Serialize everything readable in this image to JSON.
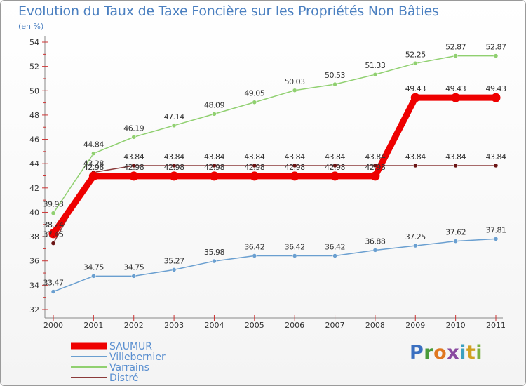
{
  "header": {
    "title": "Evolution du Taux de Taxe Foncière sur les Propriétés Non Bâties",
    "unit": "(en %)"
  },
  "logo": {
    "letters": [
      {
        "ch": "P",
        "color": "#3a6fc0"
      },
      {
        "ch": "r",
        "color": "#4a9a3a"
      },
      {
        "ch": "o",
        "color": "#e07820"
      },
      {
        "ch": "x",
        "color": "#8a4aa0"
      },
      {
        "ch": "i",
        "color": "#3aa0c0"
      },
      {
        "ch": "t",
        "color": "#d0a020"
      },
      {
        "ch": "i",
        "color": "#7ab040"
      }
    ]
  },
  "chart_data": {
    "type": "line",
    "title": "Evolution du Taux de Taxe Foncière sur les Propriétés Non Bâties",
    "ylabel": "(en %)",
    "xlabel": "",
    "categories": [
      "2000",
      "2001",
      "2002",
      "2003",
      "2004",
      "2005",
      "2006",
      "2007",
      "2008",
      "2009",
      "2010",
      "2011"
    ],
    "ylim": [
      32,
      54
    ],
    "yticks": [
      32,
      34,
      36,
      38,
      40,
      42,
      44,
      46,
      48,
      50,
      52,
      54
    ],
    "series": [
      {
        "name": "Distré",
        "color": "#8b3a3a",
        "values": [
          37.45,
          43.28,
          43.84,
          43.84,
          43.84,
          43.84,
          43.84,
          43.84,
          43.84,
          43.84,
          43.84,
          43.84
        ],
        "labels": [
          "37.45",
          "43.28",
          "43.84",
          "43.84",
          "43.84",
          "43.84",
          "43.84",
          "43.84",
          "43.84",
          "43.84",
          "43.84",
          "43.84"
        ]
      },
      {
        "name": "Villebernier",
        "color": "#6a9fd0",
        "values": [
          33.47,
          34.75,
          34.75,
          35.27,
          35.98,
          36.42,
          36.42,
          36.42,
          36.88,
          37.25,
          37.62,
          37.81
        ],
        "labels": [
          "33.47",
          "34.75",
          "34.75",
          "35.27",
          "35.98",
          "36.42",
          "36.42",
          "36.42",
          "36.88",
          "37.25",
          "37.62",
          "37.81"
        ]
      },
      {
        "name": "Varrains",
        "color": "#90d070",
        "values": [
          39.93,
          44.84,
          46.19,
          47.14,
          48.09,
          49.05,
          50.03,
          50.53,
          51.33,
          52.25,
          52.87,
          52.87
        ],
        "labels": [
          "39.93",
          "44.84",
          "46.19",
          "47.14",
          "48.09",
          "49.05",
          "50.03",
          "50.53",
          "51.33",
          "52.25",
          "52.87",
          "52.87"
        ]
      },
      {
        "name": "SAUMUR",
        "color": "#ee0000",
        "values": [
          38.24,
          42.98,
          42.98,
          42.98,
          42.98,
          42.98,
          42.98,
          42.98,
          42.98,
          49.43,
          49.43,
          49.43
        ],
        "labels": [
          "38.24",
          "42.98",
          "42.98",
          "42.98",
          "42.98",
          "42.98",
          "42.98",
          "42.98",
          "42.98",
          "49.43",
          "49.43",
          "49.43"
        ]
      }
    ],
    "legend": [
      "SAUMUR",
      "Villebernier",
      "Varrains",
      "Distré"
    ],
    "legend_position": "bottom-left",
    "grid": false
  }
}
